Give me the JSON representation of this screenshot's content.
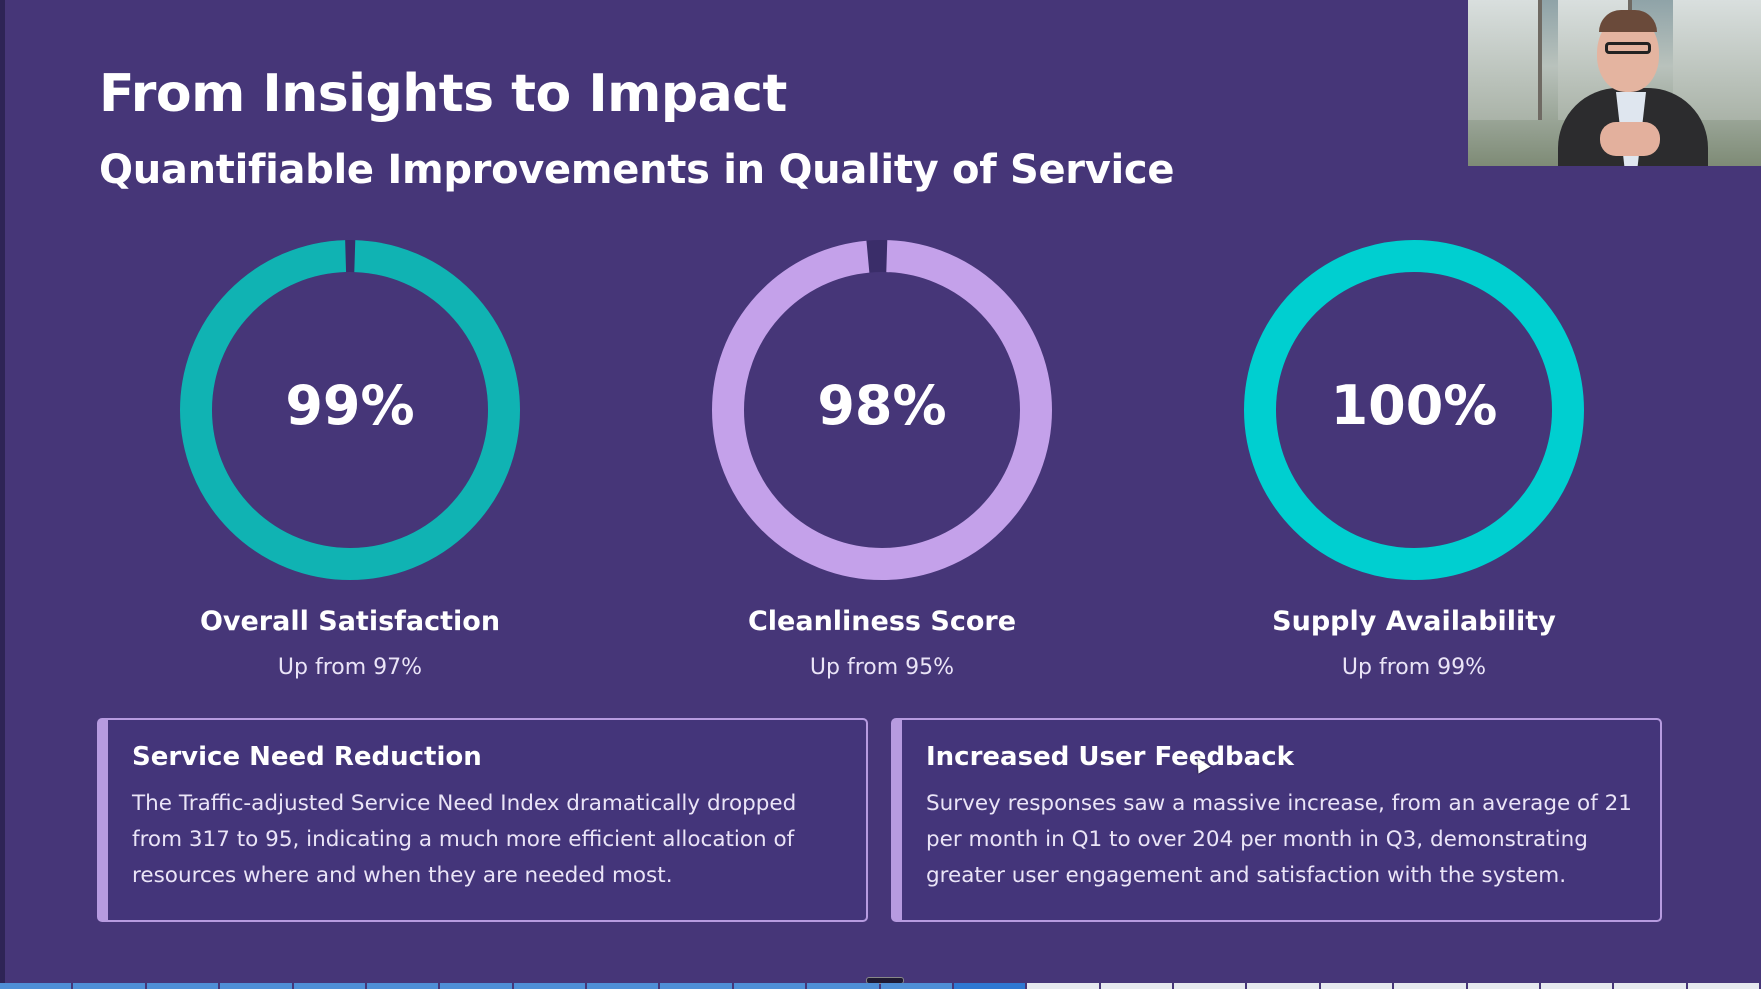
{
  "slide": {
    "title": "From Insights to Impact",
    "subtitle": "Quantifiable Improvements in Quality of Service"
  },
  "metrics": [
    {
      "value": "99%",
      "label": "Overall Satisfaction",
      "sub": "Up from 97%",
      "percent": 99,
      "color": "#10b3b3"
    },
    {
      "value": "98%",
      "label": "Cleanliness Score",
      "sub": "Up from 95%",
      "percent": 98,
      "color": "#c4a1ea"
    },
    {
      "value": "100%",
      "label": "Supply Availability",
      "sub": "Up from 99%",
      "percent": 100,
      "color": "#00cfd0"
    }
  ],
  "cards": [
    {
      "title": "Service Need Reduction",
      "body": "The Traffic-adjusted Service Need Index dramatically dropped from 317 to 95, indicating a much more efficient allocation of resources where and when they are needed most."
    },
    {
      "title": "Increased User Feedback",
      "body": "Survey responses saw a massive increase, from an average of 21 per month in Q1 to over 204 per month in Q3, demonstrating greater user engagement and satisfaction with the system."
    }
  ],
  "colors": {
    "background": "#463678",
    "track": "#3a2d69",
    "card_border": "#b79be0"
  },
  "progress": {
    "total_segments": 24,
    "completed_segments": 14
  },
  "video_feed": {
    "icon": "presenter-video-icon"
  }
}
